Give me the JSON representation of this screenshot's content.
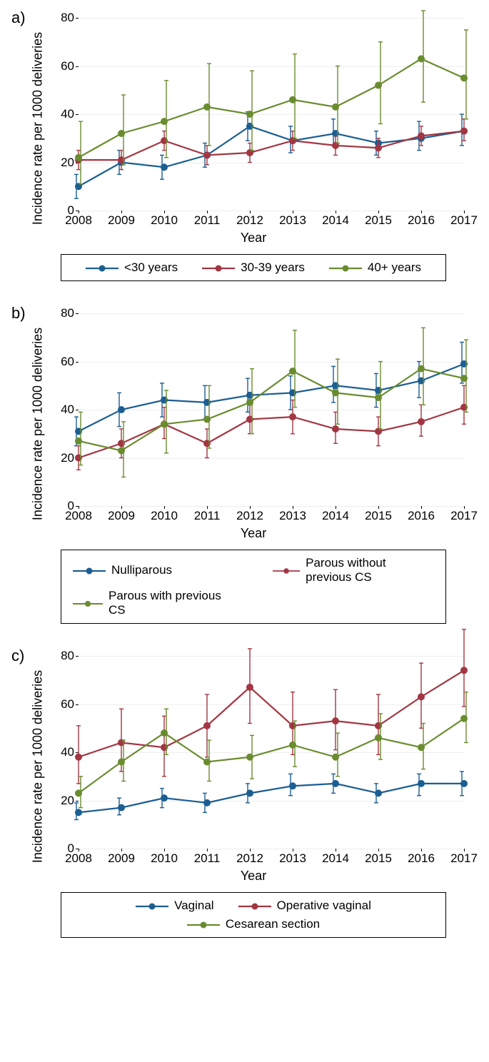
{
  "years": [
    2008,
    2009,
    2010,
    2011,
    2012,
    2013,
    2014,
    2015,
    2016,
    2017
  ],
  "ylim": [
    0,
    80
  ],
  "yticks": [
    0,
    20,
    40,
    60,
    80
  ],
  "xlabel": "Year",
  "ylabel": "Incidence rate per 1000 deliveries",
  "colors": {
    "blue": "#1c5e92",
    "red": "#a23642",
    "green": "#6a8c2f"
  },
  "grid_color": "#eeeeee",
  "marker_radius": 4.5,
  "line_width": 2.2,
  "cap_width": 6,
  "panels": [
    {
      "label": "a)",
      "legend_cols": 3,
      "series": [
        {
          "label": "<30 years",
          "color": "blue",
          "y": [
            10,
            20,
            18,
            23,
            35,
            29,
            32,
            28,
            30,
            33
          ],
          "lo": [
            5,
            15,
            13,
            18,
            29,
            24,
            27,
            23,
            25,
            27
          ],
          "hi": [
            15,
            25,
            23,
            28,
            41,
            35,
            38,
            33,
            37,
            40
          ]
        },
        {
          "label": "30-39 years",
          "color": "red",
          "y": [
            21,
            21,
            29,
            23,
            24,
            29,
            27,
            26,
            31,
            33
          ],
          "lo": [
            17,
            17,
            25,
            19,
            20,
            25,
            23,
            22,
            27,
            29
          ],
          "hi": [
            25,
            25,
            33,
            27,
            28,
            33,
            31,
            30,
            35,
            38
          ]
        },
        {
          "label": "40+ years",
          "color": "green",
          "y": [
            22,
            32,
            37,
            43,
            40,
            46,
            43,
            52,
            63,
            55
          ],
          "lo": [
            11,
            19,
            22,
            27,
            25,
            30,
            28,
            36,
            45,
            38
          ],
          "hi": [
            37,
            48,
            54,
            61,
            58,
            65,
            60,
            70,
            83,
            75
          ]
        }
      ]
    },
    {
      "label": "b)",
      "legend_cols": 2,
      "series": [
        {
          "label": "Nulliparous",
          "color": "blue",
          "y": [
            31,
            40,
            44,
            43,
            46,
            47,
            50,
            48,
            52,
            59
          ],
          "lo": [
            25,
            33,
            37,
            36,
            39,
            40,
            43,
            41,
            45,
            51
          ],
          "hi": [
            37,
            47,
            51,
            50,
            53,
            54,
            58,
            55,
            60,
            68
          ]
        },
        {
          "label": "Parous without previous CS",
          "color": "red",
          "y": [
            20,
            26,
            34,
            26,
            36,
            37,
            32,
            31,
            35,
            41
          ],
          "lo": [
            15,
            20,
            28,
            20,
            30,
            30,
            26,
            25,
            29,
            34
          ],
          "hi": [
            25,
            32,
            41,
            32,
            43,
            44,
            39,
            37,
            42,
            50
          ]
        },
        {
          "label": "Parous with previous CS",
          "color": "green",
          "y": [
            27,
            23,
            34,
            36,
            43,
            56,
            47,
            45,
            57,
            53
          ],
          "lo": [
            17,
            12,
            22,
            24,
            30,
            41,
            34,
            32,
            42,
            39
          ],
          "hi": [
            39,
            35,
            48,
            50,
            57,
            73,
            61,
            60,
            74,
            69
          ]
        }
      ]
    },
    {
      "label": "c)",
      "legend_cols": 3,
      "series": [
        {
          "label": "Vaginal",
          "color": "blue",
          "y": [
            15,
            17,
            21,
            19,
            23,
            26,
            27,
            23,
            27,
            27
          ],
          "lo": [
            12,
            14,
            17,
            15,
            19,
            22,
            23,
            19,
            22,
            22
          ],
          "hi": [
            19,
            21,
            25,
            23,
            27,
            31,
            31,
            27,
            31,
            32
          ]
        },
        {
          "label": "Operative vaginal",
          "color": "red",
          "y": [
            38,
            44,
            42,
            51,
            67,
            51,
            53,
            51,
            63,
            74
          ],
          "lo": [
            27,
            32,
            30,
            38,
            52,
            39,
            41,
            39,
            50,
            59
          ],
          "hi": [
            51,
            58,
            55,
            64,
            83,
            65,
            66,
            64,
            77,
            91
          ]
        },
        {
          "label": "Cesarean section",
          "color": "green",
          "y": [
            23,
            36,
            48,
            36,
            38,
            43,
            38,
            46,
            42,
            54
          ],
          "lo": [
            17,
            28,
            39,
            28,
            29,
            34,
            30,
            37,
            33,
            44
          ],
          "hi": [
            30,
            45,
            58,
            45,
            47,
            53,
            48,
            56,
            52,
            65
          ]
        }
      ]
    }
  ]
}
